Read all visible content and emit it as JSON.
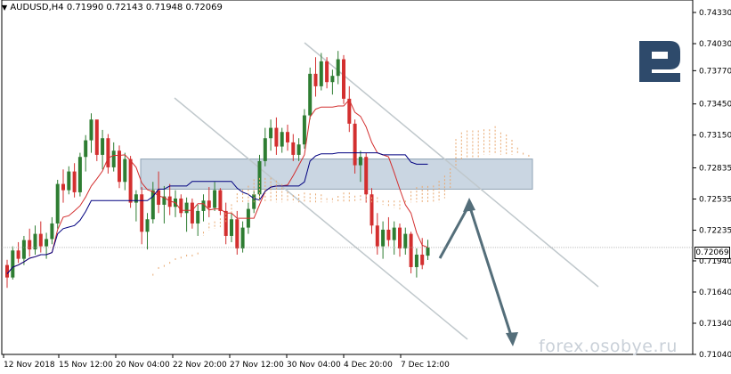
{
  "header": {
    "symbol": "AUDUSD,H4",
    "open": "0.71990",
    "high": "0.72143",
    "low": "0.71948",
    "close": "0.72069"
  },
  "watermark": "forex.osobye.ru",
  "logo": {
    "name": "R-logo-icon",
    "color": "#2e4a6b"
  },
  "current_price": "0.72069",
  "colors": {
    "bull": "#2e7d32",
    "bear": "#d32f2f",
    "kijun": "#000080",
    "tenkan": "#d32f2f",
    "cloud": "#e8a870",
    "channel": "#c0c8cc",
    "zone": "#b8c8d8",
    "arrow": "#546e7a"
  },
  "chart_data": {
    "type": "candlestick",
    "ylim": [
      0.7104,
      0.7445
    ],
    "yticks": [
      "0.74330",
      "0.74030",
      "0.73770",
      "0.73450",
      "0.73150",
      "0.72835",
      "0.72535",
      "0.72235",
      "0.71940",
      "0.71640",
      "0.71340",
      "0.71040"
    ],
    "yticks_values": [
      0.7433,
      0.7403,
      0.7377,
      0.7345,
      0.7315,
      0.72835,
      0.72535,
      0.72235,
      0.7194,
      0.7164,
      0.7134,
      0.7104
    ],
    "xticks": [
      "12 Nov 2018",
      "15 Nov 12:00",
      "20 Nov 04:00",
      "22 Nov 20:00",
      "27 Nov 12:00",
      "30 Nov 04:00",
      "4 Dec 20:00",
      "7 Dec 12:00"
    ],
    "resistance_zone": [
      0.7263,
      0.7292
    ],
    "channel_upper": [
      [
        0.745,
        0.7164
      ]
    ],
    "candles": [
      [
        0.719,
        0.7195,
        0.7168,
        0.7178
      ],
      [
        0.7178,
        0.7208,
        0.7176,
        0.7204
      ],
      [
        0.7204,
        0.7212,
        0.7192,
        0.7196
      ],
      [
        0.7196,
        0.7218,
        0.719,
        0.7214
      ],
      [
        0.7214,
        0.7225,
        0.7198,
        0.7205
      ],
      [
        0.7205,
        0.7228,
        0.72,
        0.722
      ],
      [
        0.722,
        0.7232,
        0.7202,
        0.7208
      ],
      [
        0.7208,
        0.7221,
        0.7196,
        0.7215
      ],
      [
        0.7215,
        0.7236,
        0.721,
        0.723
      ],
      [
        0.723,
        0.7272,
        0.7225,
        0.7268
      ],
      [
        0.7268,
        0.7282,
        0.725,
        0.7262
      ],
      [
        0.7262,
        0.7285,
        0.7258,
        0.728
      ],
      [
        0.728,
        0.7288,
        0.7255,
        0.726
      ],
      [
        0.726,
        0.7298,
        0.7256,
        0.7294
      ],
      [
        0.7294,
        0.7315,
        0.728,
        0.731
      ],
      [
        0.731,
        0.7336,
        0.7298,
        0.733
      ],
      [
        0.733,
        0.7328,
        0.729,
        0.7296
      ],
      [
        0.7296,
        0.732,
        0.7282,
        0.7312
      ],
      [
        0.7312,
        0.7316,
        0.7278,
        0.7284
      ],
      [
        0.7284,
        0.7308,
        0.728,
        0.73
      ],
      [
        0.73,
        0.7305,
        0.7264,
        0.727
      ],
      [
        0.727,
        0.7298,
        0.7262,
        0.7292
      ],
      [
        0.7292,
        0.7295,
        0.7245,
        0.725
      ],
      [
        0.725,
        0.7262,
        0.7232,
        0.7258
      ],
      [
        0.7258,
        0.7265,
        0.721,
        0.7222
      ],
      [
        0.7222,
        0.724,
        0.7205,
        0.7234
      ],
      [
        0.7234,
        0.727,
        0.723,
        0.7262
      ],
      [
        0.7262,
        0.728,
        0.724,
        0.7248
      ],
      [
        0.7248,
        0.7266,
        0.723,
        0.7256
      ],
      [
        0.7256,
        0.7268,
        0.7238,
        0.7246
      ],
      [
        0.7246,
        0.7262,
        0.7236,
        0.7254
      ],
      [
        0.7254,
        0.7258,
        0.7236,
        0.724
      ],
      [
        0.724,
        0.7255,
        0.7222,
        0.725
      ],
      [
        0.725,
        0.7254,
        0.7225,
        0.723
      ],
      [
        0.723,
        0.7248,
        0.7218,
        0.7242
      ],
      [
        0.7242,
        0.7258,
        0.7232,
        0.7252
      ],
      [
        0.7252,
        0.7265,
        0.7236,
        0.7245
      ],
      [
        0.7245,
        0.727,
        0.7242,
        0.7262
      ],
      [
        0.7262,
        0.7264,
        0.7238,
        0.7242
      ],
      [
        0.7242,
        0.725,
        0.721,
        0.7218
      ],
      [
        0.7218,
        0.724,
        0.7212,
        0.7234
      ],
      [
        0.7234,
        0.7242,
        0.72,
        0.7206
      ],
      [
        0.7206,
        0.7232,
        0.7202,
        0.7226
      ],
      [
        0.7226,
        0.725,
        0.722,
        0.7244
      ],
      [
        0.7244,
        0.7262,
        0.724,
        0.7258
      ],
      [
        0.7258,
        0.7296,
        0.7252,
        0.729
      ],
      [
        0.729,
        0.7322,
        0.7285,
        0.7312
      ],
      [
        0.7312,
        0.733,
        0.73,
        0.7322
      ],
      [
        0.7322,
        0.7332,
        0.7296,
        0.7304
      ],
      [
        0.7304,
        0.7322,
        0.7298,
        0.7318
      ],
      [
        0.7318,
        0.7325,
        0.73,
        0.7308
      ],
      [
        0.7308,
        0.7316,
        0.729,
        0.7296
      ],
      [
        0.7296,
        0.7312,
        0.729,
        0.7306
      ],
      [
        0.7306,
        0.734,
        0.7302,
        0.7334
      ],
      [
        0.7334,
        0.738,
        0.733,
        0.7374
      ],
      [
        0.7374,
        0.739,
        0.7352,
        0.7362
      ],
      [
        0.7362,
        0.7394,
        0.7358,
        0.7386
      ],
      [
        0.7386,
        0.739,
        0.736,
        0.7366
      ],
      [
        0.7366,
        0.7378,
        0.7354,
        0.7372
      ],
      [
        0.7372,
        0.7396,
        0.7364,
        0.7388
      ],
      [
        0.7388,
        0.7392,
        0.7345,
        0.735
      ],
      [
        0.735,
        0.7362,
        0.7318,
        0.7326
      ],
      [
        0.7326,
        0.733,
        0.7278,
        0.7286
      ],
      [
        0.7286,
        0.73,
        0.727,
        0.7294
      ],
      [
        0.7294,
        0.7298,
        0.725,
        0.7258
      ],
      [
        0.7258,
        0.7264,
        0.722,
        0.7228
      ],
      [
        0.7228,
        0.724,
        0.72,
        0.7208
      ],
      [
        0.7208,
        0.7232,
        0.7196,
        0.7224
      ],
      [
        0.7224,
        0.7236,
        0.7208,
        0.7214
      ],
      [
        0.7214,
        0.7232,
        0.72,
        0.7226
      ],
      [
        0.7226,
        0.723,
        0.7198,
        0.7206
      ],
      [
        0.7206,
        0.7226,
        0.72,
        0.722
      ],
      [
        0.722,
        0.7222,
        0.7182,
        0.7188
      ],
      [
        0.7188,
        0.7206,
        0.7178,
        0.72
      ],
      [
        0.72,
        0.7216,
        0.7186,
        0.719
      ],
      [
        0.7199,
        0.72143,
        0.71948,
        0.72069
      ]
    ]
  }
}
